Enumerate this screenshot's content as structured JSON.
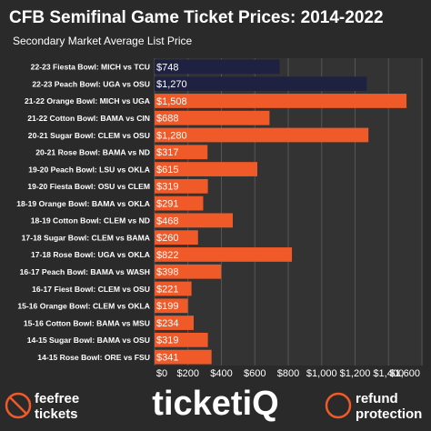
{
  "chart_data": {
    "type": "barh",
    "title": "CFB Semifinal Game Ticket Prices: 2014-2022",
    "subtitle": "Secondary Market Average List Price",
    "categories": [
      "22-23 Fiesta Bowl: MICH vs TCU",
      "22-23 Peach Bowl: UGA vs OSU",
      "21-22 Orange Bowl: MICH vs UGA",
      "21-22 Cotton Bowl: BAMA vs CIN",
      "20-21 Sugar Bowl: CLEM vs OSU",
      "20-21 Rose Bowl: BAMA vs ND",
      "19-20 Peach Bowl: LSU vs OKLA",
      "19-20 Fiesta Bowl: OSU vs CLEM",
      "18-19 Orange Bowl: BAMA vs OKLA",
      "18-19 Cotton Bowl: CLEM vs ND",
      "17-18 Sugar Bowl: CLEM vs BAMA",
      "17-18 Rose Bowl: UGA vs OKLA",
      "16-17 Peach Bowl: BAMA vs WASH",
      "16-17 Fiest Bowl: CLEM vs OSU",
      "15-16 Orange Bowl: CLEM vs OKLA",
      "15-16 Cotton Bowl: BAMA vs MSU",
      "14-15 Sugar Bowl: BAMA vs OSU",
      "14-15 Rose Bowl: ORE vs FSU"
    ],
    "values": [
      748,
      1270,
      1508,
      688,
      1280,
      317,
      615,
      319,
      291,
      468,
      260,
      822,
      398,
      221,
      199,
      234,
      319,
      341
    ],
    "value_labels": [
      "$748",
      "$1,270",
      "$1,508",
      "$688",
      "$1,280",
      "$317",
      "$615",
      "$319",
      "$291",
      "$468",
      "$260",
      "$822",
      "$398",
      "$221",
      "$199",
      "$234",
      "$319",
      "$341"
    ],
    "colors": [
      "#1e2140",
      "#1e2140",
      "#f05a28",
      "#f05a28",
      "#f05a28",
      "#f05a28",
      "#f05a28",
      "#f05a28",
      "#f05a28",
      "#f05a28",
      "#f05a28",
      "#f05a28",
      "#f05a28",
      "#f05a28",
      "#f05a28",
      "#f05a28",
      "#f05a28",
      "#f05a28"
    ],
    "xlim": [
      0,
      1600
    ],
    "xticks": [
      {
        "value": 0,
        "label": "$0"
      },
      {
        "value": 200,
        "label": "$200"
      },
      {
        "value": 400,
        "label": "$400"
      },
      {
        "value": 600,
        "label": "$600"
      },
      {
        "value": 800,
        "label": "$800"
      },
      {
        "value": 1000,
        "label": "$1,000"
      },
      {
        "value": 1200,
        "label": "$1,200"
      },
      {
        "value": 1400,
        "label": "$1,400"
      },
      {
        "value": 1600,
        "label": "$1,600"
      }
    ],
    "grid": true,
    "footer": [
      "feefree",
      "tickets",
      "ticketiQ",
      "refund",
      "protection"
    ]
  }
}
